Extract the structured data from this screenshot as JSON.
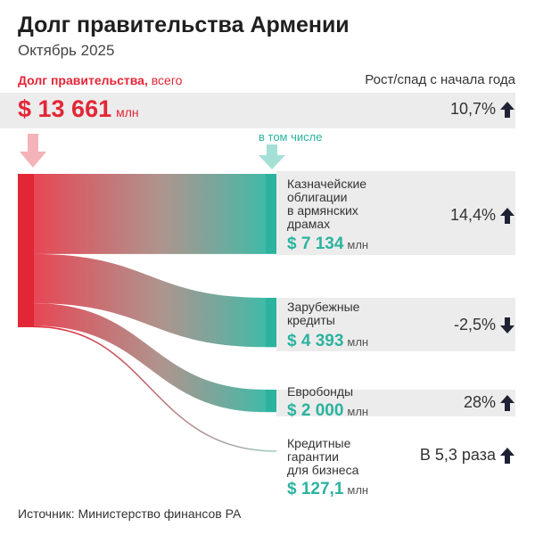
{
  "header": {
    "title": "Долг правительства Армении",
    "subtitle": "Октябрь 2025"
  },
  "total": {
    "label_bold": "Долг правительства,",
    "label_rest": " всего",
    "value": "$ 13 661",
    "unit": "млн",
    "growth": "10,7%",
    "growth_direction": "up"
  },
  "growth_header": "Рост/спад с начала года",
  "including_label": "в том числе",
  "colors": {
    "red": "#e32636",
    "teal": "#2bb39f",
    "band": "#ececec",
    "arrow_dark": "#1f2233"
  },
  "chart_data": {
    "type": "sankey",
    "title": "Долг правительства Армении",
    "source": {
      "name": "Долг правительства, всего",
      "value": 13661,
      "unit": "млн $"
    },
    "targets": [
      {
        "name": "Казначейские облигации в армянских драмах",
        "label_lines": [
          "Казначейские",
          "облигации",
          "в армянских",
          "драмах"
        ],
        "value": 7134,
        "display": "$ 7 134",
        "unit": "млн",
        "growth": "14,4%",
        "direction": "up"
      },
      {
        "name": "Зарубежные кредиты",
        "label_lines": [
          "Зарубежные",
          "кредиты"
        ],
        "value": 4393,
        "display": "$ 4 393",
        "unit": "млн",
        "growth": "-2,5%",
        "direction": "down"
      },
      {
        "name": "Евробонды",
        "label_lines": [
          "Евробонды"
        ],
        "value": 2000,
        "display": "$ 2 000",
        "unit": "млн",
        "growth": "28%",
        "direction": "up"
      },
      {
        "name": "Кредитные гарантии для бизнеса",
        "label_lines": [
          "Кредитные",
          "гарантии",
          "для бизнеса"
        ],
        "value": 127.1,
        "display": "$ 127,1",
        "unit": "млн",
        "growth": "В 5,3 раза",
        "direction": "up"
      }
    ]
  },
  "source_note": "Источник: Министерство финансов РА"
}
